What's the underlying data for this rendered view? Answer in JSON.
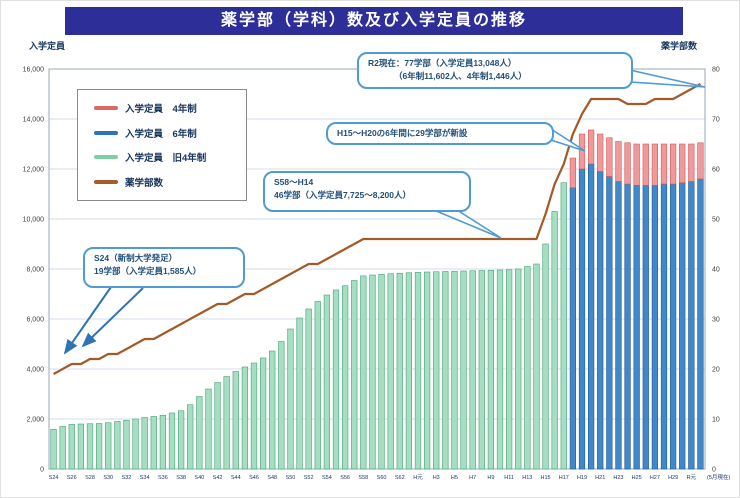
{
  "header": {
    "title": "薬学部（学科）数及び入学定員の推移"
  },
  "axes": {
    "left_title": "入学定員",
    "right_title": "薬学部数"
  },
  "legend": {
    "items": [
      {
        "key": "new4",
        "label": "入学定員　4年制",
        "color": "#e06666"
      },
      {
        "key": "six",
        "label": "入学定員　6年制",
        "color": "#2e75b6"
      },
      {
        "key": "old4",
        "label": "入学定員　旧4年制",
        "color": "#7fcfa5"
      },
      {
        "key": "count",
        "label": "薬学部数",
        "color": "#a85a28"
      }
    ]
  },
  "callouts": {
    "r2": {
      "line1": "R2現在：77学部（入学定員13,048人）",
      "line2": "（6年制11,602人、4年制1,446人）"
    },
    "h15": {
      "line1": "H15～H20の6年間に29学部が新設"
    },
    "s58": {
      "line1": "S58～H14",
      "line2": "46学部（入学定員7,725～8,200人）"
    },
    "s24": {
      "line1": "S24（新制大学発足）",
      "line2": "19学部（入学定員1,585人）"
    }
  },
  "chart_data": {
    "type": "bar",
    "stacked": true,
    "title": "薬学部（学科）数及び入学定員の推移",
    "grid": true,
    "legend_position": "upper-left",
    "left_axis": {
      "title": "入学定員",
      "min": 0,
      "max": 16000,
      "step": 2000
    },
    "right_axis": {
      "title": "薬学部数",
      "min": 0,
      "max": 80,
      "step": 10
    },
    "years": [
      1949,
      1950,
      1951,
      1952,
      1953,
      1954,
      1955,
      1956,
      1957,
      1958,
      1959,
      1960,
      1961,
      1962,
      1963,
      1964,
      1965,
      1966,
      1967,
      1968,
      1969,
      1970,
      1971,
      1972,
      1973,
      1974,
      1975,
      1976,
      1977,
      1978,
      1979,
      1980,
      1981,
      1982,
      1983,
      1984,
      1985,
      1986,
      1987,
      1988,
      1989,
      1990,
      1991,
      1992,
      1993,
      1994,
      1995,
      1996,
      1997,
      1998,
      1999,
      2000,
      2001,
      2002,
      2003,
      2004,
      2005,
      2006,
      2007,
      2008,
      2009,
      2010,
      2011,
      2012,
      2013,
      2014,
      2015,
      2016,
      2017,
      2018,
      2019,
      2020
    ],
    "x_tick_labels": [
      "S24",
      "S26",
      "S28",
      "S30",
      "S32",
      "S34",
      "S36",
      "S38",
      "S40",
      "S42",
      "S44",
      "S46",
      "S48",
      "S50",
      "S52",
      "S54",
      "S56",
      "S58",
      "S60",
      "S62",
      "H元",
      "H3",
      "H5",
      "H7",
      "H9",
      "H11",
      "H13",
      "H15",
      "H17",
      "H19",
      "H21",
      "H23",
      "H25",
      "H27",
      "H29",
      "R元"
    ],
    "x_axis_end_note": "(5月現在)",
    "series": [
      {
        "key": "old4",
        "name": "入学定員 旧4年制",
        "type": "bar",
        "color": "#a5dec0",
        "border": "#45a376",
        "values": [
          1585,
          1700,
          1790,
          1800,
          1810,
          1820,
          1850,
          1900,
          1950,
          2000,
          2060,
          2100,
          2150,
          2240,
          2330,
          2570,
          2900,
          3200,
          3460,
          3700,
          3900,
          4080,
          4240,
          4440,
          4720,
          5100,
          5600,
          6040,
          6400,
          6700,
          6960,
          7160,
          7330,
          7540,
          7725,
          7760,
          7790,
          7810,
          7830,
          7850,
          7870,
          7880,
          7890,
          7900,
          7910,
          7920,
          7930,
          7940,
          7950,
          7960,
          7970,
          8000,
          8100,
          8200,
          9000,
          10300,
          11450,
          0,
          0,
          0,
          0,
          0,
          0,
          0,
          0,
          0,
          0,
          0,
          0,
          0,
          0,
          0
        ]
      },
      {
        "key": "six",
        "name": "入学定員 6年制",
        "type": "bar",
        "color": "#4288c8",
        "border": "#1f5c99",
        "values": [
          0,
          0,
          0,
          0,
          0,
          0,
          0,
          0,
          0,
          0,
          0,
          0,
          0,
          0,
          0,
          0,
          0,
          0,
          0,
          0,
          0,
          0,
          0,
          0,
          0,
          0,
          0,
          0,
          0,
          0,
          0,
          0,
          0,
          0,
          0,
          0,
          0,
          0,
          0,
          0,
          0,
          0,
          0,
          0,
          0,
          0,
          0,
          0,
          0,
          0,
          0,
          0,
          0,
          0,
          0,
          0,
          0,
          11250,
          12000,
          12200,
          11900,
          11700,
          11500,
          11400,
          11350,
          11350,
          11350,
          11400,
          11400,
          11450,
          11500,
          11602
        ]
      },
      {
        "key": "new4",
        "name": "入学定員 4年制",
        "type": "bar",
        "color": "#f0999b",
        "border": "#cf5b5b",
        "values": [
          0,
          0,
          0,
          0,
          0,
          0,
          0,
          0,
          0,
          0,
          0,
          0,
          0,
          0,
          0,
          0,
          0,
          0,
          0,
          0,
          0,
          0,
          0,
          0,
          0,
          0,
          0,
          0,
          0,
          0,
          0,
          0,
          0,
          0,
          0,
          0,
          0,
          0,
          0,
          0,
          0,
          0,
          0,
          0,
          0,
          0,
          0,
          0,
          0,
          0,
          0,
          0,
          0,
          0,
          0,
          0,
          0,
          1190,
          1400,
          1360,
          1500,
          1550,
          1600,
          1650,
          1650,
          1650,
          1650,
          1600,
          1600,
          1550,
          1500,
          1446
        ]
      },
      {
        "key": "count",
        "name": "薬学部数",
        "type": "line",
        "axis": "right",
        "color": "#a35a2a",
        "values": [
          19,
          20,
          21,
          21,
          22,
          22,
          23,
          23,
          24,
          25,
          26,
          26,
          27,
          28,
          29,
          30,
          31,
          32,
          33,
          33,
          34,
          35,
          35,
          36,
          37,
          38,
          39,
          40,
          41,
          41,
          42,
          43,
          44,
          45,
          46,
          46,
          46,
          46,
          46,
          46,
          46,
          46,
          46,
          46,
          46,
          46,
          46,
          46,
          46,
          46,
          46,
          46,
          46,
          46,
          51,
          57,
          61,
          67,
          71,
          74,
          74,
          74,
          74,
          73,
          73,
          73,
          74,
          74,
          74,
          75,
          76,
          77
        ]
      }
    ]
  }
}
